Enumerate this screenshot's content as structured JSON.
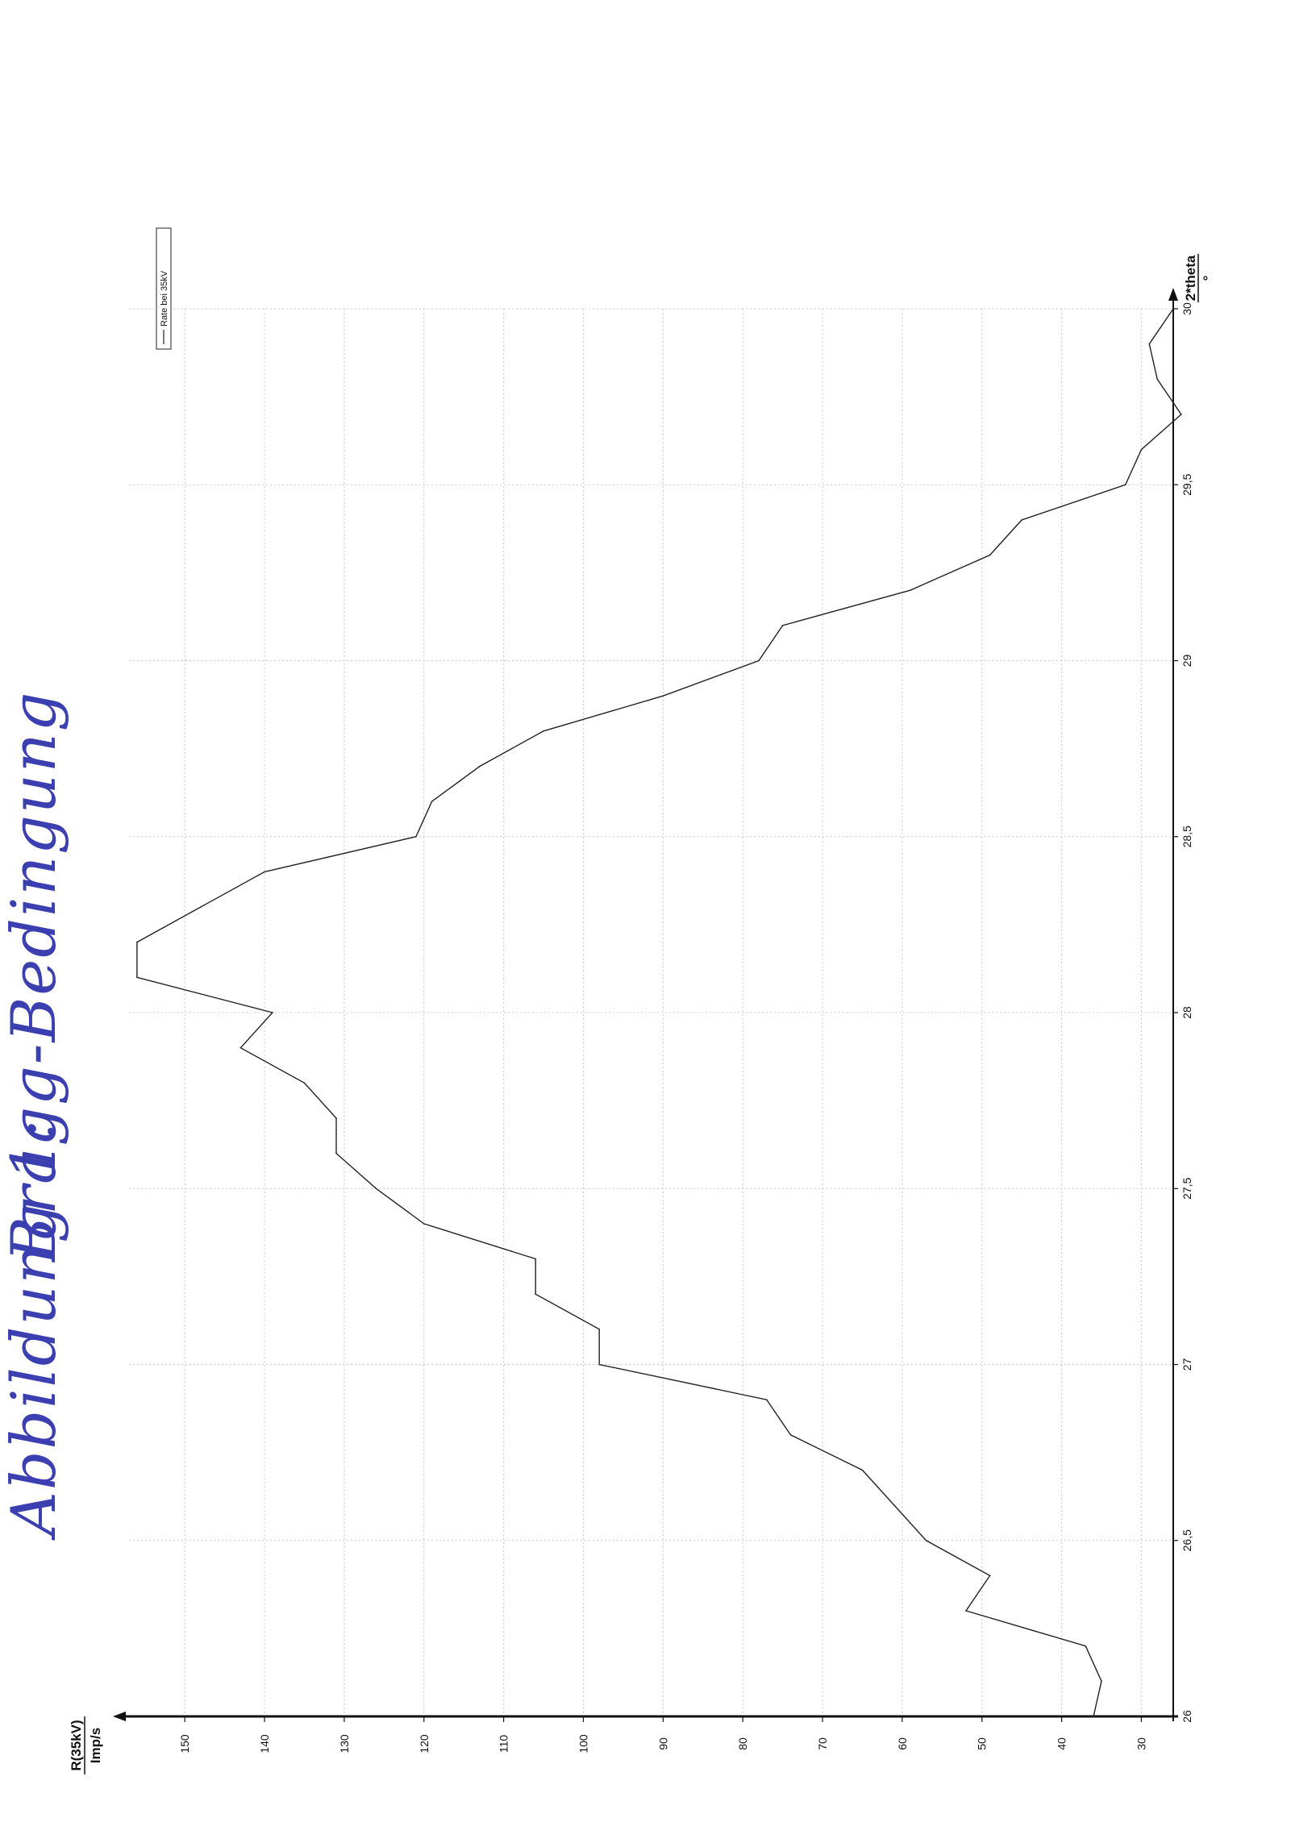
{
  "annotation": {
    "label": "Abbildung 1:",
    "title": "Bragg-Bedingung"
  },
  "chart_data": {
    "type": "line",
    "orientation": "rotated-90-ccw",
    "xlabel": "2*theta",
    "xunit": "°",
    "ylabel": "R(35kV)",
    "yunit": "Imp/s",
    "xlim": [
      26,
      30
    ],
    "ylim": [
      26,
      157
    ],
    "xticks": [
      26,
      26.5,
      27,
      27.5,
      28,
      28.5,
      29,
      29.5,
      30
    ],
    "xtick_labels": [
      "26",
      "26,5",
      "27",
      "27,5",
      "28",
      "28,5",
      "29",
      "29,5",
      "30"
    ],
    "yticks": [
      30,
      40,
      50,
      60,
      70,
      80,
      90,
      100,
      110,
      120,
      130,
      140,
      150
    ],
    "ytick_labels": [
      "30",
      "40",
      "50",
      "60",
      "70",
      "80",
      "90",
      "100",
      "110",
      "120",
      "130",
      "140",
      "150"
    ],
    "grid": true,
    "legend_position": "top-right",
    "series": [
      {
        "name": "Rate bei 35kV",
        "color": "#222222",
        "x": [
          26.0,
          26.1,
          26.2,
          26.3,
          26.4,
          26.5,
          26.6,
          26.7,
          26.8,
          26.9,
          27.0,
          27.1,
          27.2,
          27.3,
          27.4,
          27.5,
          27.6,
          27.7,
          27.8,
          27.9,
          28.0,
          28.1,
          28.2,
          28.3,
          28.4,
          28.5,
          28.6,
          28.7,
          28.8,
          28.9,
          29.0,
          29.1,
          29.2,
          29.3,
          29.4,
          29.5,
          29.6,
          29.7,
          29.8,
          29.9,
          30.0
        ],
        "y": [
          36,
          35,
          37,
          52,
          49,
          57,
          61,
          65,
          74,
          77,
          98,
          98,
          106,
          106,
          120,
          126,
          131,
          131,
          135,
          143,
          139,
          156,
          156,
          148,
          140,
          121,
          119,
          113,
          105,
          90,
          78,
          75,
          59,
          49,
          45,
          32,
          30,
          25,
          28,
          29,
          26
        ]
      }
    ]
  }
}
